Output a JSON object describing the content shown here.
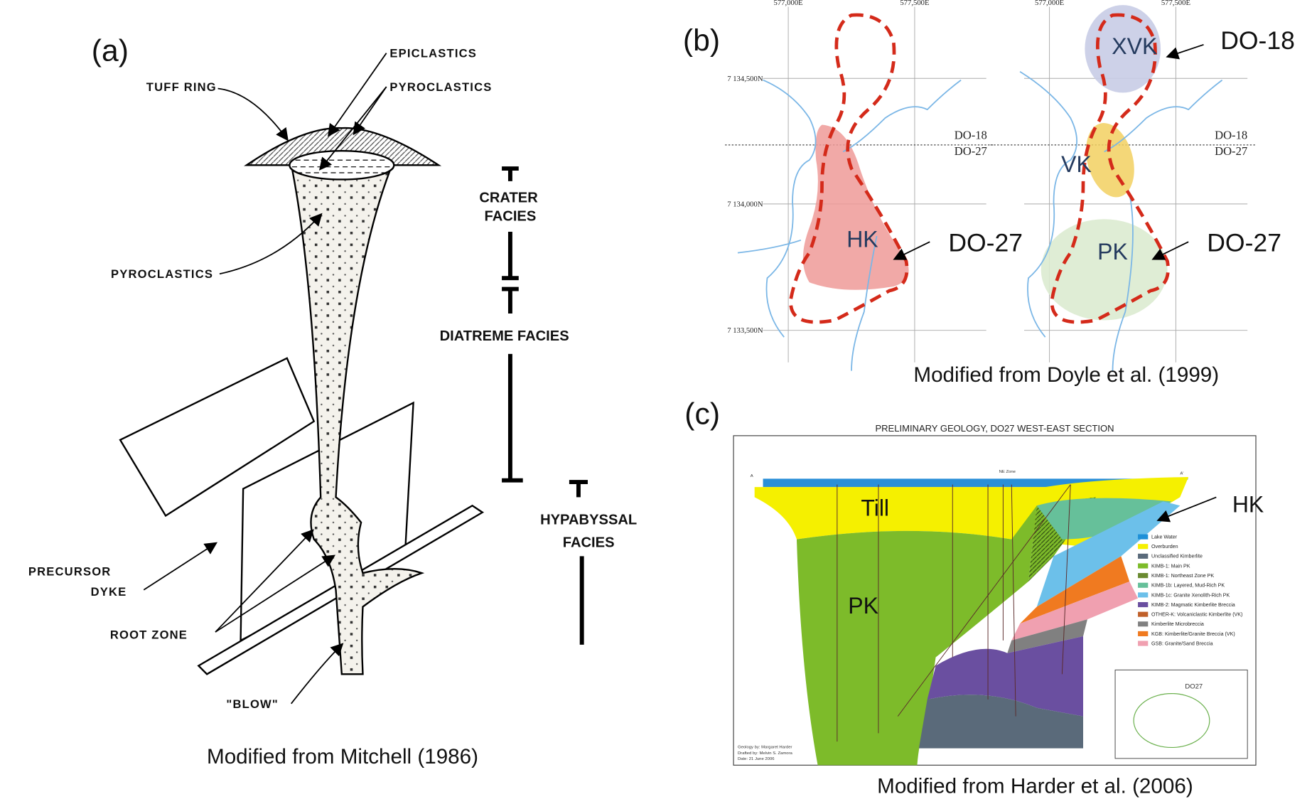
{
  "panel_a": {
    "label": "(a)",
    "caption": "Modified from Mitchell (1986)",
    "labels": {
      "epiclastics": "EPICLASTICS",
      "tuff_ring": "TUFF RING",
      "pyroclastics_top": "PYROCLASTICS",
      "pyroclastics_mid": "PYROCLASTICS",
      "precursor": "PRECURSOR",
      "dyke": "DYKE",
      "root_zone": "ROOT ZONE",
      "blow": "\"BLOW\""
    },
    "facies": {
      "crater": [
        "CRATER",
        "FACIES"
      ],
      "diatreme": "DIATREME FACIES",
      "hypabyssal": [
        "HYPABYSSAL",
        "FACIES"
      ]
    }
  },
  "panel_b": {
    "label": "(b)",
    "caption": "Modified from Doyle et al. (1999)",
    "eastings": [
      "577,000E",
      "577,500E"
    ],
    "northings": [
      "7 134,500N",
      "7 134,000N",
      "7 133,500N"
    ],
    "section_line": [
      "DO-18",
      "DO-27"
    ],
    "left_map": {
      "unit": "HK",
      "pointer": "DO-27"
    },
    "right_map": {
      "units": [
        "XVK",
        "VK",
        "PK"
      ],
      "pointers": [
        "DO-18",
        "DO-27"
      ]
    }
  },
  "panel_c": {
    "label": "(c)",
    "caption": "Modified from Harder et al. (2006)",
    "title": "PRELIMINARY GEOLOGY, DO27 WEST-EAST SECTION",
    "units": {
      "till": "Till",
      "pk": "PK",
      "hk": "HK"
    },
    "section_ends": [
      "A",
      "A'"
    ],
    "zone": "NE Zone",
    "inset": "DO27",
    "credits": [
      "Geology by: Margaret Harder",
      "Drafted by: Melvin S. Zamora",
      "Date: 21 June 2006"
    ],
    "legend": [
      {
        "label": "Lake Water",
        "color": "#1e90d8"
      },
      {
        "label": "Overburden",
        "color": "#f5f000"
      },
      {
        "label": "Unclassified Kimberlite",
        "color": "#5a6a7a"
      },
      {
        "label": "KIMB-1: Main PK",
        "color": "#7dbb2a"
      },
      {
        "label": "KIMB-1: Northeast Zone PK",
        "color": "#6a8a30"
      },
      {
        "label": "KIMB-1b: Layered, Mud-Rich PK",
        "color": "#66c09a"
      },
      {
        "label": "KIMB-1c: Granite Xenolith-Rich PK",
        "color": "#6cc0ea"
      },
      {
        "label": "KIMB-2: Magmatic Kimberlite Breccia",
        "color": "#6a4fa0"
      },
      {
        "label": "OTHER-K: Volcaniclastic Kimberlite (VK)",
        "color": "#c0602a"
      },
      {
        "label": "Kimberlite Microbreccia",
        "color": "#808080"
      },
      {
        "label": "KGB: Kimberlite/Granite Breccia (VK)",
        "color": "#f07a20"
      },
      {
        "label": "GSB: Granite/Sand Breccia",
        "color": "#f0a0b0"
      }
    ]
  }
}
